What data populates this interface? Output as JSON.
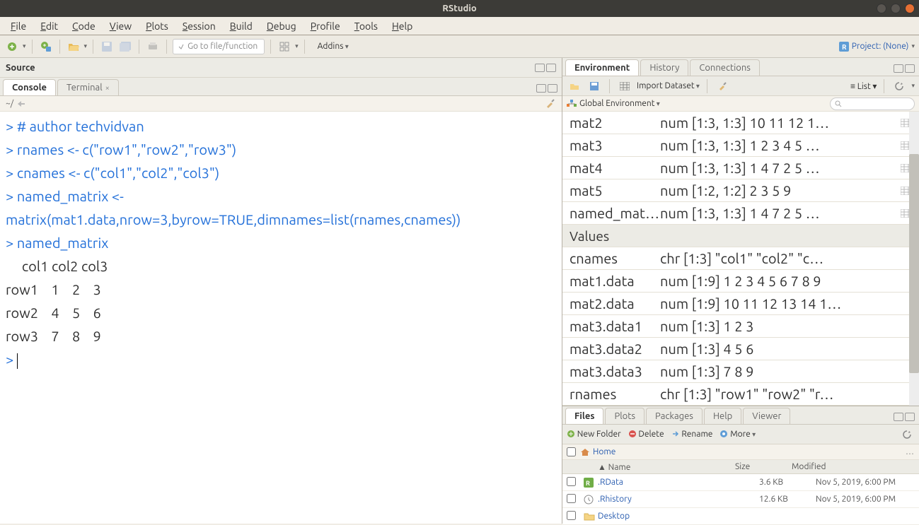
{
  "window": {
    "title": "RStudio"
  },
  "menu": [
    "File",
    "Edit",
    "Code",
    "View",
    "Plots",
    "Session",
    "Build",
    "Debug",
    "Profile",
    "Tools",
    "Help"
  ],
  "toolbar": {
    "goto_placeholder": "Go to file/function",
    "addins": "Addins",
    "project": "Project: (None)"
  },
  "source": {
    "title": "Source"
  },
  "console_tabs": {
    "console": "Console",
    "terminal": "Terminal"
  },
  "console_path": "~/",
  "console_lines": [
    {
      "type": "prompt",
      "text": "# author techvidvan"
    },
    {
      "type": "prompt",
      "text": "rnames <- c(\"row1\",\"row2\",\"row3\")"
    },
    {
      "type": "prompt",
      "text": "cnames <- c(\"col1\",\"col2\",\"col3\")"
    },
    {
      "type": "prompt",
      "text": "named_matrix <- matrix(mat1.data,nrow=3,byrow=TRUE,dimnames=list(rnames,cnames))"
    },
    {
      "type": "prompt",
      "text": "named_matrix"
    },
    {
      "type": "out",
      "text": "     col1 col2 col3"
    },
    {
      "type": "out",
      "text": "row1    1    2    3"
    },
    {
      "type": "out",
      "text": "row2    4    5    6"
    },
    {
      "type": "out",
      "text": "row3    7    8    9"
    }
  ],
  "env_tabs": [
    "Environment",
    "History",
    "Connections"
  ],
  "env_toolbar": {
    "import": "Import Dataset",
    "list": "List"
  },
  "env_scope": "Global Environment",
  "env_sections": {
    "data": [
      {
        "name": "mat2",
        "value": "num [1:3, 1:3] 10 11 12 1…",
        "grid": true
      },
      {
        "name": "mat3",
        "value": "num [1:3, 1:3] 1 2 3 4 5 …",
        "grid": true
      },
      {
        "name": "mat4",
        "value": "num [1:3, 1:3] 1 4 7 2 5 …",
        "grid": true
      },
      {
        "name": "mat5",
        "value": "num [1:2, 1:2] 2 3 5 9",
        "grid": true
      },
      {
        "name": "named_mat…",
        "value": "num [1:3, 1:3] 1 4 7 2 5 …",
        "grid": true
      }
    ],
    "values_label": "Values",
    "values": [
      {
        "name": "cnames",
        "value": "chr [1:3] \"col1\" \"col2\" \"c…"
      },
      {
        "name": "mat1.data",
        "value": "num [1:9] 1 2 3 4 5 6 7 8 9"
      },
      {
        "name": "mat2.data",
        "value": "num [1:9] 10 11 12 13 14 1…"
      },
      {
        "name": "mat3.data1",
        "value": "num [1:3] 1 2 3"
      },
      {
        "name": "mat3.data2",
        "value": "num [1:3] 4 5 6"
      },
      {
        "name": "mat3.data3",
        "value": "num [1:3] 7 8 9"
      },
      {
        "name": "rnames",
        "value": "chr [1:3] \"row1\" \"row2\" \"r…"
      }
    ]
  },
  "files_tabs": [
    "Files",
    "Plots",
    "Packages",
    "Help",
    "Viewer"
  ],
  "files_toolbar": {
    "new": "New Folder",
    "delete": "Delete",
    "rename": "Rename",
    "more": "More"
  },
  "files_breadcrumb": "Home",
  "files_cols": {
    "name": "Name",
    "size": "Size",
    "modified": "Modified"
  },
  "files_rows": [
    {
      "icon": "rdata",
      "name": ".RData",
      "size": "3.6 KB",
      "modified": "Nov 5, 2019, 6:00 PM"
    },
    {
      "icon": "rhist",
      "name": ".Rhistory",
      "size": "12.6 KB",
      "modified": "Nov 5, 2019, 6:00 PM"
    },
    {
      "icon": "folder",
      "name": "Desktop",
      "size": "",
      "modified": ""
    }
  ],
  "colors": {
    "code_blue": "#2370d9",
    "titlebar": "#3c3b37",
    "close_btn": "#e66f33"
  }
}
